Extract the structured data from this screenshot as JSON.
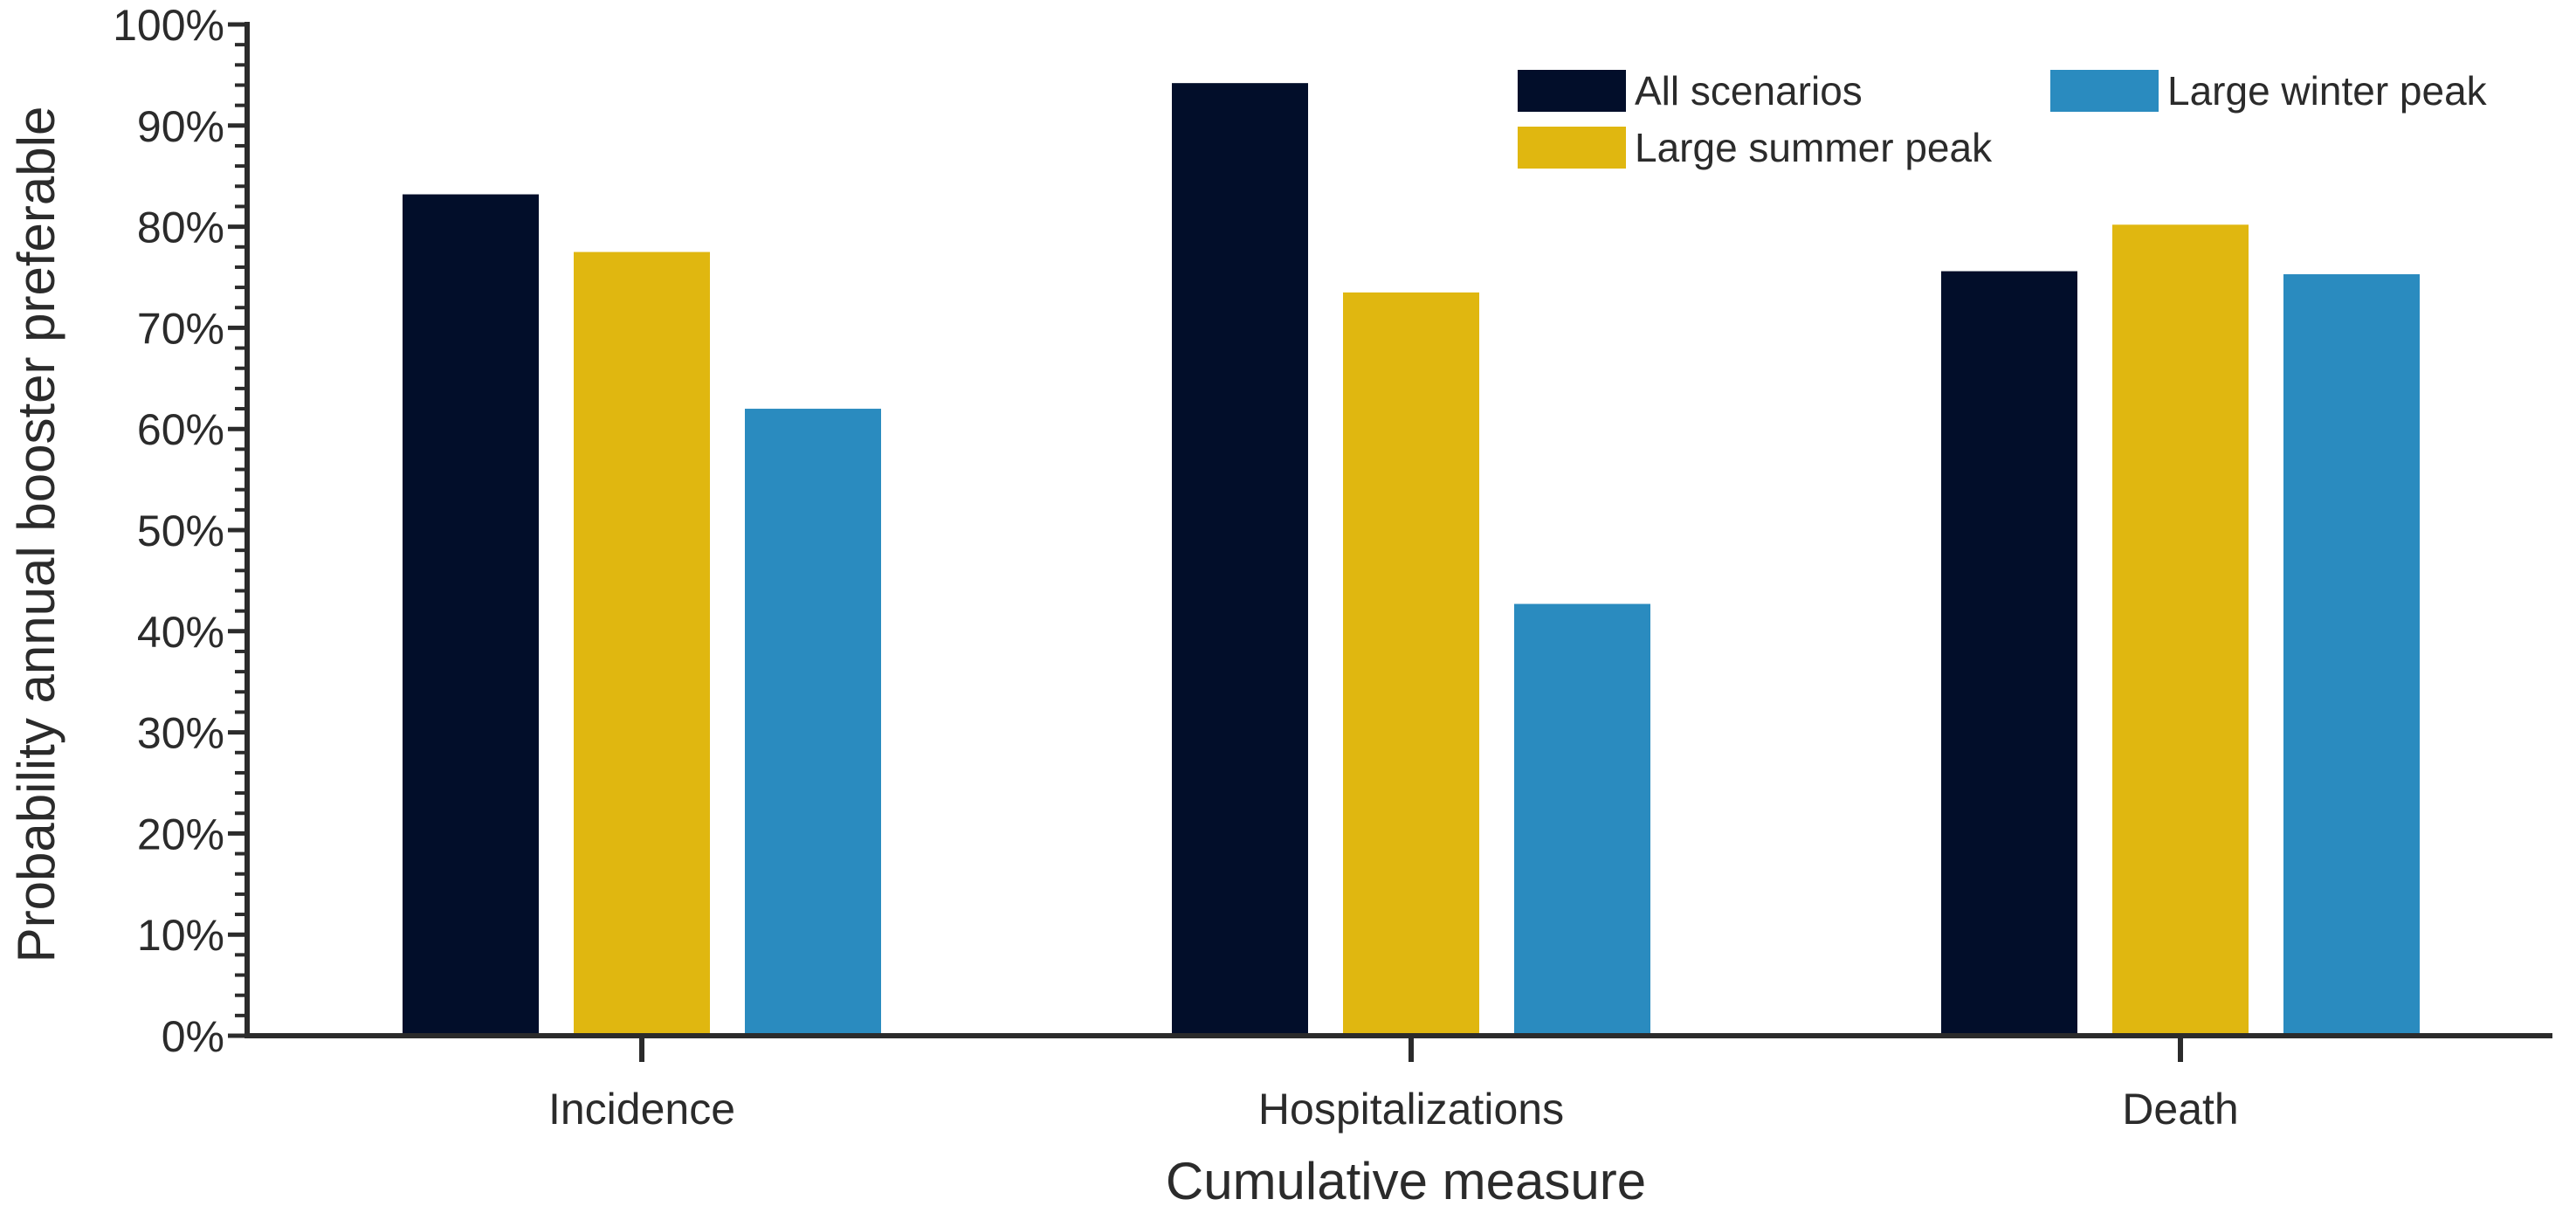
{
  "chart_data": {
    "type": "bar",
    "title": "",
    "xlabel": "Cumulative measure",
    "ylabel": "Probability annual booster preferable",
    "categories": [
      "Incidence",
      "Hospitalizations",
      "Death"
    ],
    "ylim": [
      0,
      100
    ],
    "y_unit": "%",
    "yticks": [
      "0%",
      "10%",
      "20%",
      "30%",
      "40%",
      "50%",
      "60%",
      "70%",
      "80%",
      "90%",
      "100%"
    ],
    "grid": false,
    "legend_position": "top-right",
    "series": [
      {
        "name": "All scenarios",
        "color": "#020e2a",
        "values": [
          83.2,
          94.2,
          75.6
        ]
      },
      {
        "name": "Large summer peak",
        "color": "#e0b710",
        "values": [
          77.5,
          73.5,
          80.2
        ]
      },
      {
        "name": "Large winter peak",
        "color": "#2a8bbf",
        "values": [
          62.0,
          42.7,
          75.3
        ]
      }
    ]
  }
}
